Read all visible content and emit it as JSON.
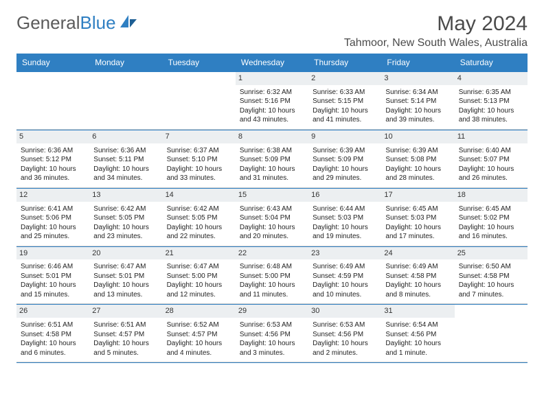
{
  "brand": {
    "part1": "General",
    "part2": "Blue"
  },
  "title": "May 2024",
  "location": "Tahmoor, New South Wales, Australia",
  "header_bg": "#2f7fc2",
  "weekdays": [
    "Sunday",
    "Monday",
    "Tuesday",
    "Wednesday",
    "Thursday",
    "Friday",
    "Saturday"
  ],
  "weeks": [
    [
      null,
      null,
      null,
      {
        "day": "1",
        "sunrise": "Sunrise: 6:32 AM",
        "sunset": "Sunset: 5:16 PM",
        "daylight1": "Daylight: 10 hours",
        "daylight2": "and 43 minutes."
      },
      {
        "day": "2",
        "sunrise": "Sunrise: 6:33 AM",
        "sunset": "Sunset: 5:15 PM",
        "daylight1": "Daylight: 10 hours",
        "daylight2": "and 41 minutes."
      },
      {
        "day": "3",
        "sunrise": "Sunrise: 6:34 AM",
        "sunset": "Sunset: 5:14 PM",
        "daylight1": "Daylight: 10 hours",
        "daylight2": "and 39 minutes."
      },
      {
        "day": "4",
        "sunrise": "Sunrise: 6:35 AM",
        "sunset": "Sunset: 5:13 PM",
        "daylight1": "Daylight: 10 hours",
        "daylight2": "and 38 minutes."
      }
    ],
    [
      {
        "day": "5",
        "sunrise": "Sunrise: 6:36 AM",
        "sunset": "Sunset: 5:12 PM",
        "daylight1": "Daylight: 10 hours",
        "daylight2": "and 36 minutes."
      },
      {
        "day": "6",
        "sunrise": "Sunrise: 6:36 AM",
        "sunset": "Sunset: 5:11 PM",
        "daylight1": "Daylight: 10 hours",
        "daylight2": "and 34 minutes."
      },
      {
        "day": "7",
        "sunrise": "Sunrise: 6:37 AM",
        "sunset": "Sunset: 5:10 PM",
        "daylight1": "Daylight: 10 hours",
        "daylight2": "and 33 minutes."
      },
      {
        "day": "8",
        "sunrise": "Sunrise: 6:38 AM",
        "sunset": "Sunset: 5:09 PM",
        "daylight1": "Daylight: 10 hours",
        "daylight2": "and 31 minutes."
      },
      {
        "day": "9",
        "sunrise": "Sunrise: 6:39 AM",
        "sunset": "Sunset: 5:09 PM",
        "daylight1": "Daylight: 10 hours",
        "daylight2": "and 29 minutes."
      },
      {
        "day": "10",
        "sunrise": "Sunrise: 6:39 AM",
        "sunset": "Sunset: 5:08 PM",
        "daylight1": "Daylight: 10 hours",
        "daylight2": "and 28 minutes."
      },
      {
        "day": "11",
        "sunrise": "Sunrise: 6:40 AM",
        "sunset": "Sunset: 5:07 PM",
        "daylight1": "Daylight: 10 hours",
        "daylight2": "and 26 minutes."
      }
    ],
    [
      {
        "day": "12",
        "sunrise": "Sunrise: 6:41 AM",
        "sunset": "Sunset: 5:06 PM",
        "daylight1": "Daylight: 10 hours",
        "daylight2": "and 25 minutes."
      },
      {
        "day": "13",
        "sunrise": "Sunrise: 6:42 AM",
        "sunset": "Sunset: 5:05 PM",
        "daylight1": "Daylight: 10 hours",
        "daylight2": "and 23 minutes."
      },
      {
        "day": "14",
        "sunrise": "Sunrise: 6:42 AM",
        "sunset": "Sunset: 5:05 PM",
        "daylight1": "Daylight: 10 hours",
        "daylight2": "and 22 minutes."
      },
      {
        "day": "15",
        "sunrise": "Sunrise: 6:43 AM",
        "sunset": "Sunset: 5:04 PM",
        "daylight1": "Daylight: 10 hours",
        "daylight2": "and 20 minutes."
      },
      {
        "day": "16",
        "sunrise": "Sunrise: 6:44 AM",
        "sunset": "Sunset: 5:03 PM",
        "daylight1": "Daylight: 10 hours",
        "daylight2": "and 19 minutes."
      },
      {
        "day": "17",
        "sunrise": "Sunrise: 6:45 AM",
        "sunset": "Sunset: 5:03 PM",
        "daylight1": "Daylight: 10 hours",
        "daylight2": "and 17 minutes."
      },
      {
        "day": "18",
        "sunrise": "Sunrise: 6:45 AM",
        "sunset": "Sunset: 5:02 PM",
        "daylight1": "Daylight: 10 hours",
        "daylight2": "and 16 minutes."
      }
    ],
    [
      {
        "day": "19",
        "sunrise": "Sunrise: 6:46 AM",
        "sunset": "Sunset: 5:01 PM",
        "daylight1": "Daylight: 10 hours",
        "daylight2": "and 15 minutes."
      },
      {
        "day": "20",
        "sunrise": "Sunrise: 6:47 AM",
        "sunset": "Sunset: 5:01 PM",
        "daylight1": "Daylight: 10 hours",
        "daylight2": "and 13 minutes."
      },
      {
        "day": "21",
        "sunrise": "Sunrise: 6:47 AM",
        "sunset": "Sunset: 5:00 PM",
        "daylight1": "Daylight: 10 hours",
        "daylight2": "and 12 minutes."
      },
      {
        "day": "22",
        "sunrise": "Sunrise: 6:48 AM",
        "sunset": "Sunset: 5:00 PM",
        "daylight1": "Daylight: 10 hours",
        "daylight2": "and 11 minutes."
      },
      {
        "day": "23",
        "sunrise": "Sunrise: 6:49 AM",
        "sunset": "Sunset: 4:59 PM",
        "daylight1": "Daylight: 10 hours",
        "daylight2": "and 10 minutes."
      },
      {
        "day": "24",
        "sunrise": "Sunrise: 6:49 AM",
        "sunset": "Sunset: 4:58 PM",
        "daylight1": "Daylight: 10 hours",
        "daylight2": "and 8 minutes."
      },
      {
        "day": "25",
        "sunrise": "Sunrise: 6:50 AM",
        "sunset": "Sunset: 4:58 PM",
        "daylight1": "Daylight: 10 hours",
        "daylight2": "and 7 minutes."
      }
    ],
    [
      {
        "day": "26",
        "sunrise": "Sunrise: 6:51 AM",
        "sunset": "Sunset: 4:58 PM",
        "daylight1": "Daylight: 10 hours",
        "daylight2": "and 6 minutes."
      },
      {
        "day": "27",
        "sunrise": "Sunrise: 6:51 AM",
        "sunset": "Sunset: 4:57 PM",
        "daylight1": "Daylight: 10 hours",
        "daylight2": "and 5 minutes."
      },
      {
        "day": "28",
        "sunrise": "Sunrise: 6:52 AM",
        "sunset": "Sunset: 4:57 PM",
        "daylight1": "Daylight: 10 hours",
        "daylight2": "and 4 minutes."
      },
      {
        "day": "29",
        "sunrise": "Sunrise: 6:53 AM",
        "sunset": "Sunset: 4:56 PM",
        "daylight1": "Daylight: 10 hours",
        "daylight2": "and 3 minutes."
      },
      {
        "day": "30",
        "sunrise": "Sunrise: 6:53 AM",
        "sunset": "Sunset: 4:56 PM",
        "daylight1": "Daylight: 10 hours",
        "daylight2": "and 2 minutes."
      },
      {
        "day": "31",
        "sunrise": "Sunrise: 6:54 AM",
        "sunset": "Sunset: 4:56 PM",
        "daylight1": "Daylight: 10 hours",
        "daylight2": "and 1 minute."
      },
      null
    ]
  ]
}
